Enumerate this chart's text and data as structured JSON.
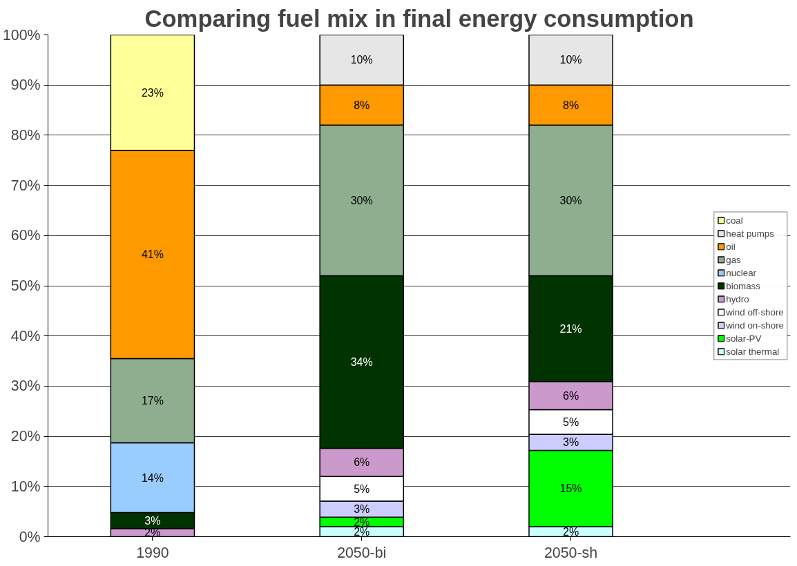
{
  "chart_data": {
    "type": "bar",
    "stacked": true,
    "title": "Comparing fuel mix in final energy consumption",
    "categories": [
      "1990",
      "2050-bi",
      "2050-sh"
    ],
    "series": [
      {
        "name": "solar thermal",
        "color": "#ccffff",
        "values": [
          null,
          2.0,
          2.0
        ],
        "value_labels": [
          null,
          "2%",
          "2%"
        ]
      },
      {
        "name": "solar-PV",
        "color": "#00ff00",
        "values": [
          null,
          1.9,
          15.2
        ],
        "value_labels": [
          null,
          "2%",
          "15%"
        ]
      },
      {
        "name": "wind on-shore",
        "color": "#ccccff",
        "values": [
          null,
          3.2,
          3.2
        ],
        "value_labels": [
          null,
          "3%",
          "3%"
        ]
      },
      {
        "name": "wind off-shore",
        "color": "#ffffff",
        "values": [
          null,
          4.9,
          4.9
        ],
        "value_labels": [
          null,
          "5%",
          "5%"
        ]
      },
      {
        "name": "hydro",
        "color": "#cc99cc",
        "values": [
          1.6,
          5.6,
          5.6
        ],
        "value_labels": [
          "2%",
          "6%",
          "6%"
        ]
      },
      {
        "name": "biomass",
        "color": "#003300",
        "values": [
          3.2,
          34.4,
          21.1
        ],
        "value_labels": [
          "3%",
          "34%",
          "21%"
        ]
      },
      {
        "name": "nuclear",
        "color": "#99ccff",
        "values": [
          13.9,
          null,
          null
        ],
        "value_labels": [
          "14%",
          null,
          null
        ]
      },
      {
        "name": "gas",
        "color": "#8fae8f",
        "values": [
          16.8,
          30.0,
          30.0
        ],
        "value_labels": [
          "17%",
          "30%",
          "30%"
        ]
      },
      {
        "name": "oil",
        "color": "#ff9900",
        "values": [
          41.5,
          8.0,
          8.0
        ],
        "value_labels": [
          "41%",
          "8%",
          "8%"
        ]
      },
      {
        "name": "heat pumps",
        "color": "#e6e6e6",
        "values": [
          null,
          10.0,
          10.0
        ],
        "value_labels": [
          null,
          "10%",
          "10%"
        ]
      },
      {
        "name": "coal",
        "color": "#ffff99",
        "values": [
          23.0,
          null,
          null
        ],
        "value_labels": [
          "23%",
          null,
          null
        ]
      }
    ],
    "ylim": [
      0,
      100
    ],
    "yticks": [
      {
        "value": 0,
        "label": "0%"
      },
      {
        "value": 10,
        "label": "10%"
      },
      {
        "value": 20,
        "label": "20%"
      },
      {
        "value": 30,
        "label": "30%"
      },
      {
        "value": 40,
        "label": "40%"
      },
      {
        "value": 50,
        "label": "50%"
      },
      {
        "value": 60,
        "label": "60%"
      },
      {
        "value": 70,
        "label": "70%"
      },
      {
        "value": 80,
        "label": "80%"
      },
      {
        "value": 90,
        "label": "90%"
      },
      {
        "value": 100,
        "label": "100%"
      }
    ],
    "grid": "y",
    "legend": "right"
  }
}
